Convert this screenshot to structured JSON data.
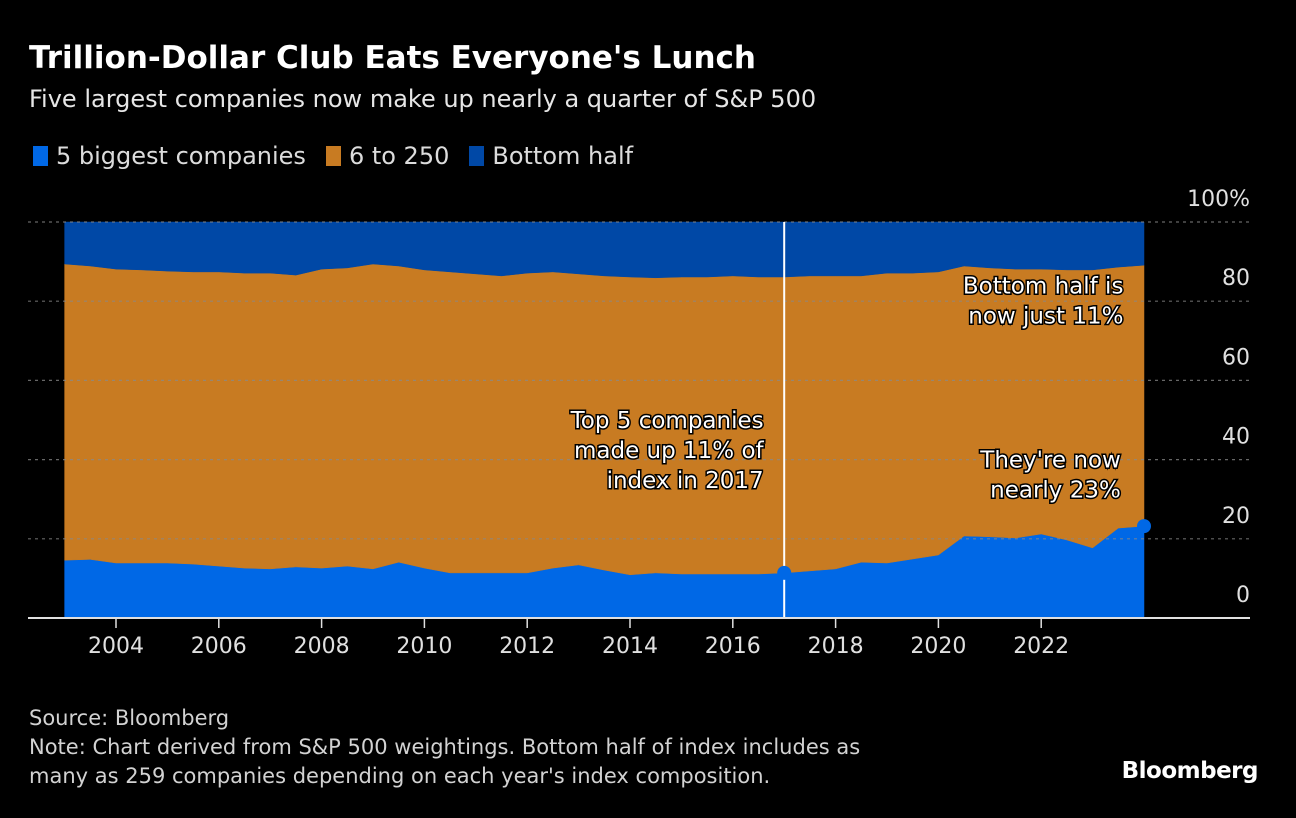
{
  "header": {
    "title": "Trillion-Dollar Club Eats Everyone's Lunch",
    "subtitle": "Five largest companies now make up nearly a quarter of S&P 500"
  },
  "legend": [
    {
      "label": "5 biggest companies",
      "color": "#0068E6"
    },
    {
      "label": "6 to 250",
      "color": "#C87B22"
    },
    {
      "label": "Bottom half",
      "color": "#0048A6"
    }
  ],
  "footer": {
    "source": "Source: Bloomberg",
    "note_line1": "Note: Chart derived from S&P 500 weightings. Bottom half of index includes as",
    "note_line2": "many as 259 companies depending on each year's index composition.",
    "brand": "Bloomberg"
  },
  "chart_data": {
    "type": "area",
    "stacked": true,
    "title": "Trillion-Dollar Club Eats Everyone's Lunch",
    "subtitle": "Five largest companies now make up nearly a quarter of S&P 500",
    "xlabel": "",
    "ylabel": "",
    "xlim": [
      2002.3,
      2024.2
    ],
    "ylim": [
      0,
      100
    ],
    "grid": true,
    "legend_position": "top-left",
    "y_axis_side": "right",
    "x_ticks": [
      2004,
      2006,
      2008,
      2010,
      2012,
      2014,
      2016,
      2018,
      2020,
      2022
    ],
    "x_tick_labels": [
      "2004",
      "2006",
      "2008",
      "2010",
      "2012",
      "2014",
      "2016",
      "2018",
      "2020",
      "2022"
    ],
    "y_ticks": [
      0,
      20,
      40,
      60,
      80,
      100
    ],
    "y_tick_labels": [
      "0",
      "20",
      "40",
      "60",
      "80",
      "100%"
    ],
    "x": [
      2003.0,
      2003.5,
      2004.0,
      2004.5,
      2005.0,
      2005.5,
      2006.0,
      2006.5,
      2007.0,
      2007.5,
      2008.0,
      2008.5,
      2009.0,
      2009.5,
      2010.0,
      2010.5,
      2011.0,
      2011.5,
      2012.0,
      2012.5,
      2013.0,
      2013.5,
      2014.0,
      2014.5,
      2015.0,
      2015.5,
      2016.0,
      2016.5,
      2017.0,
      2017.5,
      2018.0,
      2018.5,
      2019.0,
      2019.5,
      2020.0,
      2020.5,
      2021.0,
      2021.5,
      2022.0,
      2022.5,
      2023.0,
      2023.5,
      2024.0
    ],
    "series": [
      {
        "name": "5 biggest companies",
        "color": "#0068E6",
        "values": [
          14.6,
          14.8,
          13.9,
          13.9,
          13.9,
          13.6,
          13.1,
          12.6,
          12.4,
          12.9,
          12.6,
          13.1,
          12.4,
          14.1,
          12.6,
          11.4,
          11.4,
          11.4,
          11.4,
          12.6,
          13.4,
          12.1,
          10.9,
          11.4,
          11.1,
          11.1,
          11.1,
          11.1,
          11.4,
          11.9,
          12.4,
          14.1,
          13.9,
          14.9,
          15.9,
          20.7,
          20.5,
          20.2,
          21.2,
          19.7,
          17.7,
          22.7,
          23.2
        ]
      },
      {
        "name": "6 to 250",
        "color": "#C87B22",
        "values": [
          74.8,
          74.1,
          74.2,
          74.0,
          73.7,
          73.8,
          74.3,
          74.5,
          74.7,
          73.7,
          75.5,
          75.3,
          77.0,
          74.8,
          75.3,
          76.0,
          75.5,
          75.0,
          75.7,
          74.8,
          73.5,
          74.3,
          75.2,
          74.5,
          75.0,
          75.0,
          75.3,
          75.0,
          74.7,
          74.5,
          74.0,
          72.3,
          73.2,
          72.2,
          71.5,
          68.2,
          67.9,
          67.9,
          66.9,
          68.2,
          70.2,
          65.9,
          65.9
        ]
      },
      {
        "name": "Bottom half",
        "color": "#0048A6",
        "values": [
          10.6,
          11.1,
          11.9,
          12.1,
          12.4,
          12.6,
          12.6,
          12.9,
          12.9,
          13.4,
          11.9,
          11.6,
          10.6,
          11.1,
          12.1,
          12.6,
          13.1,
          13.6,
          12.9,
          12.6,
          13.1,
          13.6,
          13.9,
          14.1,
          13.9,
          13.9,
          13.6,
          13.9,
          13.9,
          13.6,
          13.6,
          13.6,
          12.9,
          12.9,
          12.6,
          11.1,
          11.6,
          11.9,
          11.9,
          12.1,
          12.1,
          11.4,
          10.9
        ]
      }
    ],
    "reference_line": {
      "x": 2017.0
    },
    "highlight_points": [
      {
        "series": "5 biggest companies",
        "x": 2017.0,
        "y": 11.4
      },
      {
        "series": "5 biggest companies",
        "x": 2024.0,
        "y": 23.2
      }
    ],
    "annotations": [
      {
        "id": "top5-2017",
        "lines": [
          "Top 5 companies",
          "made up 11% of",
          "index in 2017"
        ],
        "x": 2016.6,
        "y": 48,
        "align": "right"
      },
      {
        "id": "bottom-half",
        "lines": [
          "Bottom half is",
          "now just 11%"
        ],
        "x": 2023.6,
        "y": 82,
        "align": "right"
      },
      {
        "id": "top5-now",
        "lines": [
          "They're now",
          "nearly 23%"
        ],
        "x": 2023.55,
        "y": 38,
        "align": "right"
      }
    ]
  }
}
